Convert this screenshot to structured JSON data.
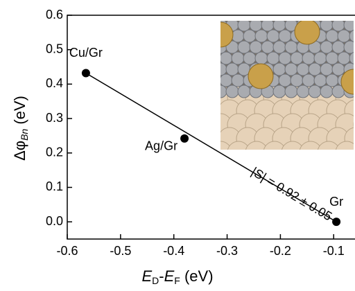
{
  "chart_data": {
    "type": "scatter",
    "x_label": [
      "E",
      "D",
      "-",
      "E",
      "F",
      " (eV)"
    ],
    "y_label": [
      "Δφ",
      "Bn",
      " (eV)"
    ],
    "annotation": "|S| = 0.92 ± 0.05",
    "x": [
      -0.565,
      -0.38,
      -0.095
    ],
    "values": [
      0.432,
      0.242,
      0.0
    ],
    "labels": [
      "Cu/Gr",
      "Ag/Gr",
      "Gr"
    ],
    "color": "#000000",
    "fit_line": {
      "x": [
        -0.565,
        -0.095
      ],
      "y": [
        0.432,
        0.0
      ],
      "color": "#000000"
    },
    "xlim": [
      -0.6,
      -0.06
    ],
    "ylim": [
      -0.05,
      0.6
    ],
    "xticks": [
      -0.6,
      -0.5,
      -0.4,
      -0.3,
      -0.2,
      -0.1
    ],
    "yticks": [
      {
        "value": 0,
        "label": "0.0"
      },
      0.1,
      0.2,
      0.3,
      0.4,
      0.5,
      0.6
    ]
  }
}
